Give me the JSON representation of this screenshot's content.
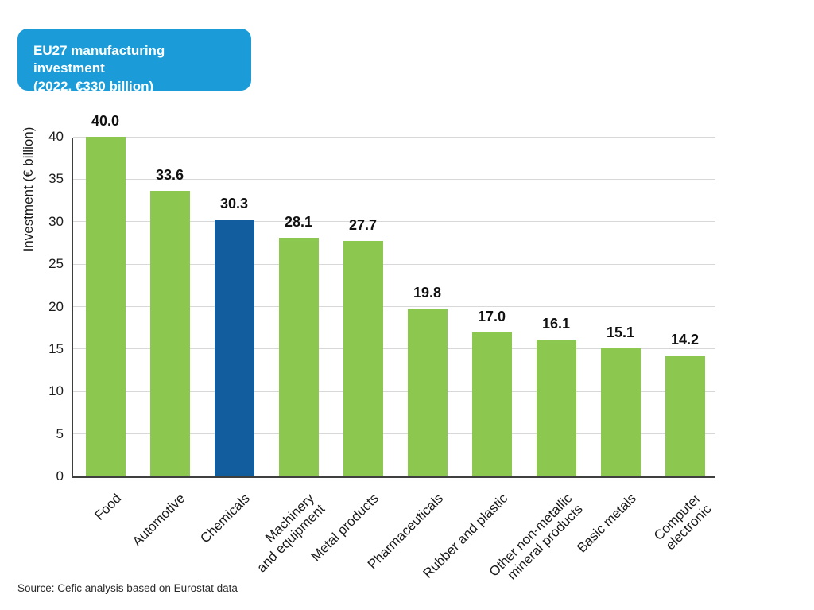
{
  "header": {
    "title_lines": [
      "EU27 manufacturing investment",
      "(2022, €330 billion)"
    ],
    "badge_color": "#1b9cd8"
  },
  "chart_data": {
    "type": "bar",
    "title": "EU27 manufacturing investment (2022, €330 billion)",
    "categories": [
      "Food",
      "Automotive",
      "Chemicals",
      "Machinery\nand equipment",
      "Metal products",
      "Pharmaceuticals",
      "Rubber and plastic",
      "Other non-metallic\nmineral products",
      "Basic metals",
      "Computer\nelectronic"
    ],
    "values": [
      40.0,
      33.6,
      30.3,
      28.1,
      27.7,
      19.8,
      17.0,
      16.1,
      15.1,
      14.2
    ],
    "highlight_index": 2,
    "ylabel": "Investment (€ billion)",
    "ylim": [
      0,
      40
    ],
    "yticks": [
      0,
      5,
      10,
      15,
      20,
      25,
      30,
      35,
      40
    ],
    "grid": true,
    "legend": false,
    "colors": {
      "bar": "#8cc74f",
      "highlight": "#125d9e",
      "gridline": "#d8d8d8",
      "axis": "#3f3f3f"
    }
  },
  "source": {
    "text": "Source: Cefic analysis based on Eurostat data"
  }
}
